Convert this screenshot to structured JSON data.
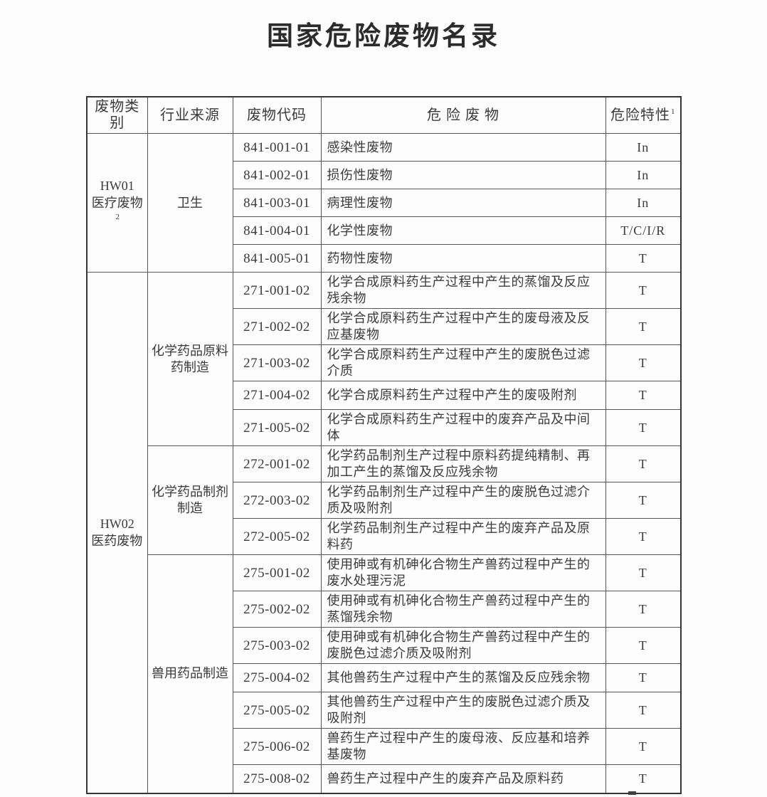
{
  "title": "国家危险废物名录",
  "table": {
    "headers": [
      "废物类别",
      "行业来源",
      "废物代码",
      "危 险 废 物",
      "危险特性"
    ],
    "hazard_header_sup": "1",
    "categories": [
      {
        "code": "HW01",
        "name": "医疗废物",
        "sup": "2",
        "industries": [
          {
            "name": "卫生",
            "rows": [
              {
                "code": "841-001-01",
                "waste": "感染性废物",
                "property": "In"
              },
              {
                "code": "841-002-01",
                "waste": "损伤性废物",
                "property": "In"
              },
              {
                "code": "841-003-01",
                "waste": "病理性废物",
                "property": "In"
              },
              {
                "code": "841-004-01",
                "waste": "化学性废物",
                "property": "T/C/I/R"
              },
              {
                "code": "841-005-01",
                "waste": "药物性废物",
                "property": "T"
              }
            ]
          }
        ]
      },
      {
        "code": "HW02",
        "name": "医药废物",
        "sup": "",
        "industries": [
          {
            "name": "化学药品原料药制造",
            "rows": [
              {
                "code": "271-001-02",
                "waste": "化学合成原料药生产过程中产生的蒸馏及反应残余物",
                "property": "T"
              },
              {
                "code": "271-002-02",
                "waste": "化学合成原料药生产过程中产生的废母液及反应基废物",
                "property": "T"
              },
              {
                "code": "271-003-02",
                "waste": "化学合成原料药生产过程中产生的废脱色过滤介质",
                "property": "T"
              },
              {
                "code": "271-004-02",
                "waste": "化学合成原料药生产过程中产生的废吸附剂",
                "property": "T"
              },
              {
                "code": "271-005-02",
                "waste": "化学合成原料药生产过程中的废弃产品及中间体",
                "property": "T"
              }
            ]
          },
          {
            "name": "化学药品制剂制造",
            "rows": [
              {
                "code": "272-001-02",
                "waste": "化学药品制剂生产过程中原料药提纯精制、再加工产生的蒸馏及反应残余物",
                "property": "T"
              },
              {
                "code": "272-003-02",
                "waste": "化学药品制剂生产过程中产生的废脱色过滤介质及吸附剂",
                "property": "T"
              },
              {
                "code": "272-005-02",
                "waste": "化学药品制剂生产过程中产生的废弃产品及原料药",
                "property": "T"
              }
            ]
          },
          {
            "name": "兽用药品制造",
            "rows": [
              {
                "code": "275-001-02",
                "waste": "使用砷或有机砷化合物生产兽药过程中产生的废水处理污泥",
                "property": "T"
              },
              {
                "code": "275-002-02",
                "waste": "使用砷或有机砷化合物生产兽药过程中产生的蒸馏残余物",
                "property": "T"
              },
              {
                "code": "275-003-02",
                "waste": "使用砷或有机砷化合物生产兽药过程中产生的废脱色过滤介质及吸附剂",
                "property": "T"
              },
              {
                "code": "275-004-02",
                "waste": "其他兽药生产过程中产生的蒸馏及反应残余物",
                "property": "T"
              },
              {
                "code": "275-005-02",
                "waste": "其他兽药生产过程中产生的废脱色过滤介质及吸附剂",
                "property": "T"
              },
              {
                "code": "275-006-02",
                "waste": "兽药生产过程中产生的废母液、反应基和培养基废物",
                "property": "T"
              },
              {
                "code": "275-008-02",
                "waste": "兽药生产过程中产生的废弃产品及原料药",
                "property": "T"
              }
            ]
          }
        ]
      }
    ]
  }
}
